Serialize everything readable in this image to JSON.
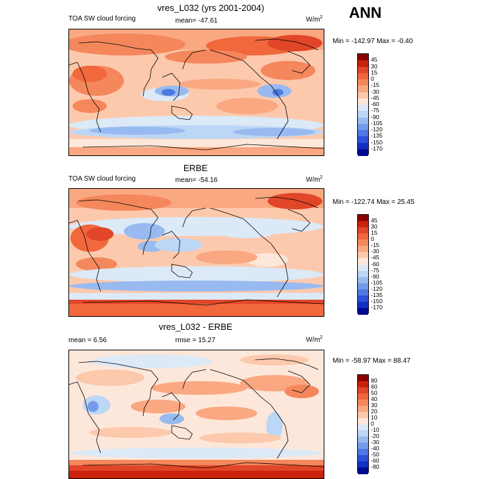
{
  "season": "ANN",
  "chart_data": [
    {
      "type": "heatmap",
      "title": "vres_L032 (yrs 2001-2004)",
      "left_label": "TOA SW cloud forcing",
      "center_label": "mean= -47.61",
      "units": "W/m",
      "units_sup": "2",
      "minmax": "Min = -142.97 Max =  -0.40",
      "levels": [
        "45",
        "30",
        "15",
        "0",
        "-15",
        "-30",
        "-45",
        "-60",
        "-75",
        "-90",
        "-105",
        "-120",
        "-135",
        "-150",
        "-170"
      ],
      "colors": [
        "#8b0000",
        "#c8220c",
        "#e14628",
        "#f0683c",
        "#f5875c",
        "#f9a882",
        "#fcc9ad",
        "#fde7da",
        "#dce9f7",
        "#bcd6f5",
        "#98baf0",
        "#739bea",
        "#4e78e2",
        "#2c52d8",
        "#1430c4",
        "#000a90"
      ],
      "mean": -47.61,
      "min": -142.97,
      "max": -0.4
    },
    {
      "type": "heatmap",
      "title": "ERBE",
      "left_label": "TOA SW cloud forcing",
      "center_label": "mean= -54.16",
      "units": "W/m",
      "units_sup": "2",
      "minmax": "Min = -122.74 Max =  25.45",
      "levels": [
        "45",
        "30",
        "15",
        "0",
        "-15",
        "-30",
        "-45",
        "-60",
        "-75",
        "-90",
        "-105",
        "-120",
        "-135",
        "-150",
        "-170"
      ],
      "colors": [
        "#8b0000",
        "#c8220c",
        "#e14628",
        "#f0683c",
        "#f5875c",
        "#f9a882",
        "#fcc9ad",
        "#fde7da",
        "#dce9f7",
        "#bcd6f5",
        "#98baf0",
        "#739bea",
        "#4e78e2",
        "#2c52d8",
        "#1430c4",
        "#000a90"
      ],
      "mean": -54.16,
      "min": -122.74,
      "max": 25.45
    },
    {
      "type": "heatmap",
      "title": "vres_L032 - ERBE",
      "left_label": "mean =   6.56",
      "center_label": "rmse =  15.27",
      "units": "W/m",
      "units_sup": "2",
      "minmax": "Min = -58.97 Max =  88.47",
      "levels": [
        "80",
        "60",
        "50",
        "40",
        "30",
        "20",
        "10",
        "0",
        "-10",
        "-20",
        "-30",
        "-40",
        "-50",
        "-60",
        "-80"
      ],
      "colors": [
        "#8b0000",
        "#c8220c",
        "#e14628",
        "#f0683c",
        "#f5875c",
        "#f9a882",
        "#fcc9ad",
        "#fde7da",
        "#dce9f7",
        "#bcd6f5",
        "#98baf0",
        "#739bea",
        "#4e78e2",
        "#2c52d8",
        "#1430c4",
        "#000a90"
      ],
      "mean": 6.56,
      "rmse": 15.27,
      "min": -58.97,
      "max": 88.47
    }
  ]
}
